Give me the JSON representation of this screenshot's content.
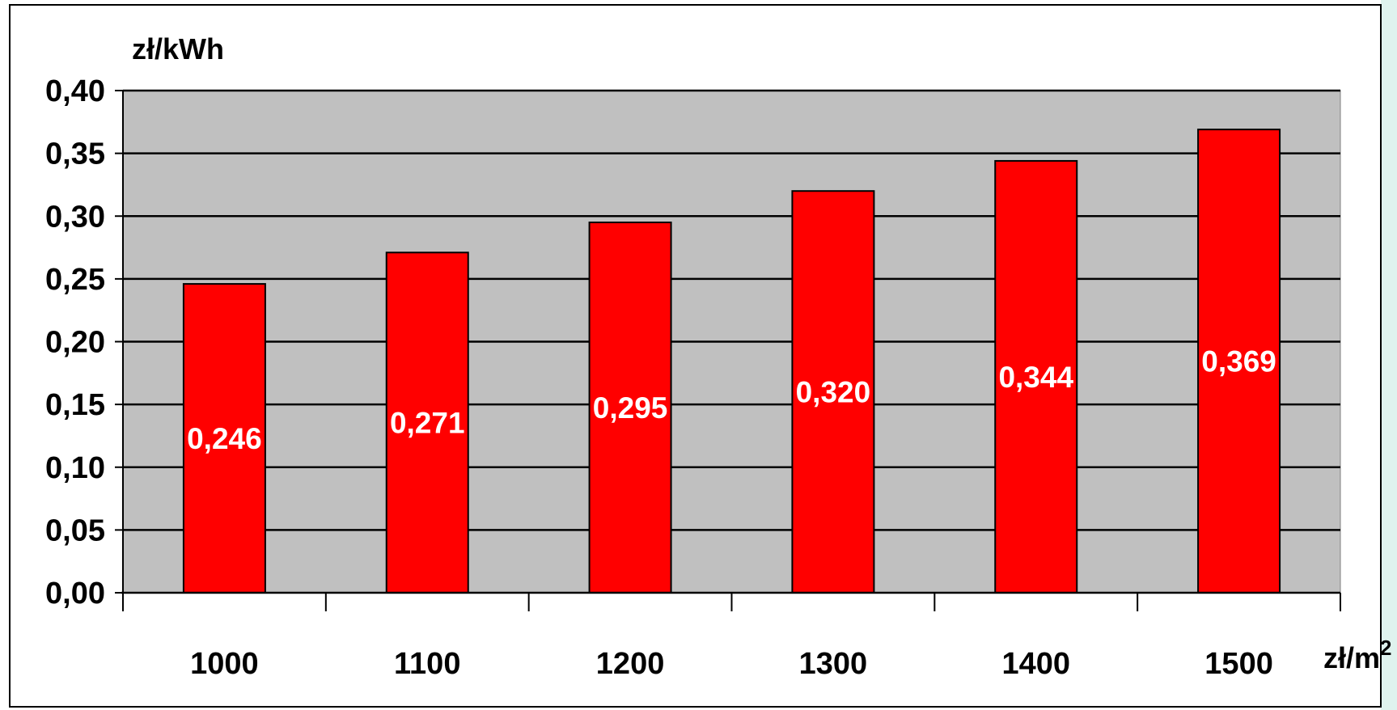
{
  "chart_data": {
    "type": "bar",
    "title": "",
    "ylabel": "zł/kWh",
    "xlabel": "zł/m",
    "xlabel_superscript": "2",
    "categories": [
      "1000",
      "1100",
      "1200",
      "1300",
      "1400",
      "1500"
    ],
    "values": [
      0.246,
      0.271,
      0.295,
      0.32,
      0.344,
      0.369
    ],
    "data_labels": [
      "0,246",
      "0,271",
      "0,295",
      "0,320",
      "0,344",
      "0,369"
    ],
    "ylim": [
      0,
      0.4
    ],
    "yticks": [
      0,
      0.05,
      0.1,
      0.15,
      0.2,
      0.25,
      0.3,
      0.35,
      0.4
    ],
    "ytick_labels": [
      "0,00",
      "0,05",
      "0,10",
      "0,15",
      "0,20",
      "0,25",
      "0,30",
      "0,35",
      "0,40"
    ],
    "grid": true,
    "legend": "none",
    "colors": {
      "bar": "#ff0000",
      "plot_background": "#c0c0c0",
      "gridline": "#000000",
      "page_background": "#ffffff",
      "bar_label": "#ffffff",
      "accent_edge": "#dff3ee"
    }
  }
}
